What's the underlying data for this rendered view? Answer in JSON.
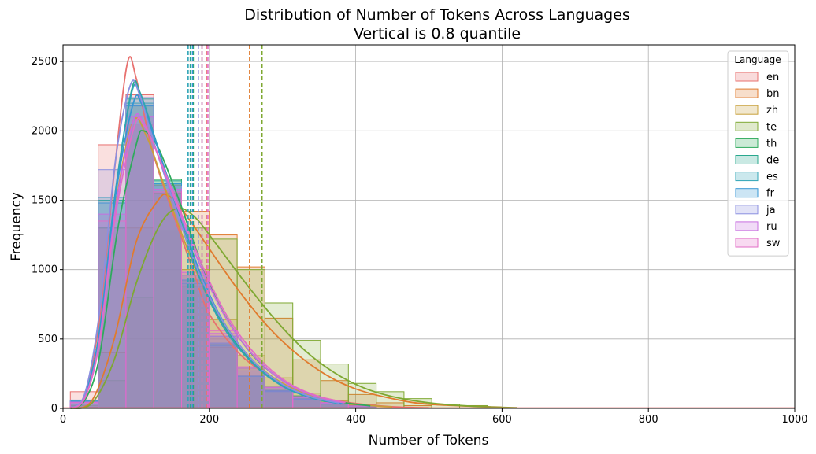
{
  "chart_data": {
    "type": "histogram",
    "title": "Distribution of Number of Tokens Across Languages",
    "subtitle": "Vertical is 0.8 quantile",
    "xlabel": "Number of Tokens",
    "ylabel": "Frequency",
    "xlim": [
      0,
      1000
    ],
    "ylim": [
      0,
      2620
    ],
    "xticks": [
      0,
      200,
      400,
      600,
      800,
      1000
    ],
    "yticks": [
      0,
      500,
      1000,
      1500,
      2000,
      2500
    ],
    "grid": true,
    "legend_title": "Language",
    "legend_position": "top-right",
    "series": [
      {
        "name": "en",
        "color": "#e8716f",
        "quantile_0_8": 196,
        "bins": [
          [
            10,
            120
          ],
          [
            48,
            1900
          ],
          [
            86,
            2260
          ],
          [
            124,
            1610
          ],
          [
            162,
            880
          ],
          [
            200,
            440
          ],
          [
            238,
            240
          ],
          [
            276,
            130
          ],
          [
            314,
            70
          ],
          [
            352,
            40
          ],
          [
            390,
            20
          ]
        ],
        "kde": [
          [
            10,
            0
          ],
          [
            30,
            100
          ],
          [
            50,
            650
          ],
          [
            70,
            1700
          ],
          [
            88,
            2490
          ],
          [
            100,
            2380
          ],
          [
            120,
            1900
          ],
          [
            140,
            1560
          ],
          [
            160,
            1260
          ],
          [
            180,
            960
          ],
          [
            200,
            680
          ],
          [
            240,
            400
          ],
          [
            280,
            240
          ],
          [
            320,
            130
          ],
          [
            360,
            70
          ],
          [
            400,
            35
          ],
          [
            450,
            12
          ],
          [
            500,
            4
          ]
        ]
      },
      {
        "name": "bn",
        "color": "#e07b2e",
        "quantile_0_8": 255,
        "bins": [
          [
            10,
            10
          ],
          [
            48,
            400
          ],
          [
            86,
            1300
          ],
          [
            124,
            1550
          ],
          [
            162,
            1420
          ],
          [
            200,
            1250
          ],
          [
            238,
            1020
          ],
          [
            276,
            650
          ],
          [
            314,
            350
          ],
          [
            352,
            200
          ],
          [
            390,
            100
          ],
          [
            428,
            40
          ],
          [
            466,
            20
          ]
        ],
        "kde": [
          [
            10,
            0
          ],
          [
            40,
            60
          ],
          [
            70,
            500
          ],
          [
            100,
            1200
          ],
          [
            130,
            1500
          ],
          [
            145,
            1530
          ],
          [
            170,
            1380
          ],
          [
            200,
            1150
          ],
          [
            240,
            850
          ],
          [
            280,
            590
          ],
          [
            320,
            390
          ],
          [
            360,
            240
          ],
          [
            400,
            140
          ],
          [
            450,
            70
          ],
          [
            500,
            30
          ],
          [
            600,
            8
          ]
        ]
      },
      {
        "name": "zh",
        "color": "#c8a03a",
        "quantile_0_8": 190,
        "bins": [
          [
            10,
            20
          ],
          [
            48,
            1300
          ],
          [
            86,
            2180
          ],
          [
            124,
            1560
          ],
          [
            162,
            1000
          ],
          [
            200,
            640
          ],
          [
            238,
            380
          ],
          [
            276,
            220
          ],
          [
            314,
            110
          ],
          [
            352,
            55
          ],
          [
            390,
            25
          ]
        ],
        "kde": [
          [
            10,
            0
          ],
          [
            30,
            80
          ],
          [
            50,
            500
          ],
          [
            70,
            1400
          ],
          [
            95,
            2060
          ],
          [
            115,
            1950
          ],
          [
            140,
            1580
          ],
          [
            170,
            1150
          ],
          [
            200,
            780
          ],
          [
            240,
            450
          ],
          [
            280,
            250
          ],
          [
            320,
            130
          ],
          [
            360,
            65
          ],
          [
            400,
            30
          ],
          [
            450,
            10
          ]
        ]
      },
      {
        "name": "te",
        "color": "#7ea832",
        "quantile_0_8": 272,
        "bins": [
          [
            10,
            5
          ],
          [
            48,
            200
          ],
          [
            86,
            800
          ],
          [
            124,
            1280
          ],
          [
            162,
            1300
          ],
          [
            200,
            1220
          ],
          [
            238,
            1000
          ],
          [
            276,
            760
          ],
          [
            314,
            490
          ],
          [
            352,
            320
          ],
          [
            390,
            180
          ],
          [
            428,
            120
          ],
          [
            466,
            70
          ],
          [
            504,
            30
          ],
          [
            542,
            20
          ]
        ],
        "kde": [
          [
            10,
            0
          ],
          [
            40,
            40
          ],
          [
            70,
            350
          ],
          [
            100,
            900
          ],
          [
            130,
            1300
          ],
          [
            155,
            1440
          ],
          [
            180,
            1380
          ],
          [
            210,
            1180
          ],
          [
            250,
            900
          ],
          [
            290,
            640
          ],
          [
            330,
            420
          ],
          [
            370,
            260
          ],
          [
            410,
            150
          ],
          [
            450,
            85
          ],
          [
            500,
            40
          ],
          [
            560,
            15
          ],
          [
            620,
            5
          ]
        ]
      },
      {
        "name": "th",
        "color": "#2eaa5c",
        "quantile_0_8": 178,
        "bins": [
          [
            10,
            30
          ],
          [
            48,
            1300
          ],
          [
            86,
            2050
          ],
          [
            124,
            1650
          ],
          [
            162,
            960
          ],
          [
            200,
            520
          ],
          [
            238,
            290
          ],
          [
            276,
            160
          ],
          [
            314,
            90
          ],
          [
            352,
            45
          ],
          [
            390,
            20
          ]
        ],
        "kde": [
          [
            10,
            0
          ],
          [
            30,
            60
          ],
          [
            50,
            380
          ],
          [
            75,
            1300
          ],
          [
            100,
            1900
          ],
          [
            110,
            2000
          ],
          [
            130,
            1880
          ],
          [
            160,
            1480
          ],
          [
            190,
            1030
          ],
          [
            220,
            680
          ],
          [
            260,
            380
          ],
          [
            300,
            200
          ],
          [
            340,
            100
          ],
          [
            380,
            45
          ],
          [
            420,
            18
          ]
        ]
      },
      {
        "name": "de",
        "color": "#29a88e",
        "quantile_0_8": 174,
        "bins": [
          [
            10,
            50
          ],
          [
            48,
            1500
          ],
          [
            86,
            2230
          ],
          [
            124,
            1640
          ],
          [
            162,
            920
          ],
          [
            200,
            460
          ],
          [
            238,
            240
          ],
          [
            276,
            130
          ],
          [
            314,
            70
          ],
          [
            352,
            35
          ],
          [
            390,
            15
          ]
        ],
        "kde": [
          [
            10,
            0
          ],
          [
            30,
            90
          ],
          [
            50,
            550
          ],
          [
            72,
            1550
          ],
          [
            94,
            2300
          ],
          [
            105,
            2280
          ],
          [
            125,
            1960
          ],
          [
            155,
            1450
          ],
          [
            185,
            980
          ],
          [
            220,
            600
          ],
          [
            260,
            330
          ],
          [
            300,
            170
          ],
          [
            340,
            80
          ],
          [
            380,
            35
          ]
        ]
      },
      {
        "name": "es",
        "color": "#2fa4b6",
        "quantile_0_8": 171,
        "bins": [
          [
            10,
            55
          ],
          [
            48,
            1520
          ],
          [
            86,
            2200
          ],
          [
            124,
            1620
          ],
          [
            162,
            900
          ],
          [
            200,
            450
          ],
          [
            238,
            230
          ],
          [
            276,
            120
          ],
          [
            314,
            65
          ],
          [
            352,
            30
          ],
          [
            390,
            12
          ]
        ],
        "kde": [
          [
            10,
            0
          ],
          [
            30,
            95
          ],
          [
            50,
            560
          ],
          [
            72,
            1580
          ],
          [
            94,
            2280
          ],
          [
            106,
            2260
          ],
          [
            126,
            1940
          ],
          [
            156,
            1420
          ],
          [
            186,
            950
          ],
          [
            220,
            580
          ],
          [
            260,
            320
          ],
          [
            300,
            160
          ],
          [
            340,
            75
          ],
          [
            380,
            32
          ]
        ]
      },
      {
        "name": "fr",
        "color": "#3596d4",
        "quantile_0_8": 177,
        "bins": [
          [
            10,
            50
          ],
          [
            48,
            1480
          ],
          [
            86,
            2180
          ],
          [
            124,
            1620
          ],
          [
            162,
            930
          ],
          [
            200,
            470
          ],
          [
            238,
            240
          ],
          [
            276,
            125
          ],
          [
            314,
            65
          ],
          [
            352,
            32
          ],
          [
            390,
            14
          ]
        ],
        "kde": [
          [
            10,
            0
          ],
          [
            30,
            90
          ],
          [
            50,
            540
          ],
          [
            72,
            1540
          ],
          [
            96,
            2200
          ],
          [
            108,
            2190
          ],
          [
            128,
            1900
          ],
          [
            158,
            1430
          ],
          [
            188,
            970
          ],
          [
            222,
            600
          ],
          [
            262,
            330
          ],
          [
            302,
            165
          ],
          [
            342,
            78
          ],
          [
            382,
            34
          ]
        ]
      },
      {
        "name": "ja",
        "color": "#8b8fe0",
        "quantile_0_8": 185,
        "bins": [
          [
            10,
            60
          ],
          [
            48,
            1720
          ],
          [
            86,
            2240
          ],
          [
            124,
            1600
          ],
          [
            162,
            960
          ],
          [
            200,
            520
          ],
          [
            238,
            270
          ],
          [
            276,
            140
          ],
          [
            314,
            75
          ],
          [
            352,
            35
          ],
          [
            390,
            15
          ]
        ],
        "kde": [
          [
            10,
            0
          ],
          [
            30,
            110
          ],
          [
            50,
            700
          ],
          [
            72,
            1800
          ],
          [
            92,
            2330
          ],
          [
            104,
            2270
          ],
          [
            124,
            1920
          ],
          [
            154,
            1440
          ],
          [
            184,
            1000
          ],
          [
            218,
            630
          ],
          [
            258,
            350
          ],
          [
            298,
            180
          ],
          [
            338,
            85
          ],
          [
            378,
            38
          ]
        ]
      },
      {
        "name": "ru",
        "color": "#c76ee0",
        "quantile_0_8": 190,
        "bins": [
          [
            10,
            45
          ],
          [
            48,
            1400
          ],
          [
            86,
            2100
          ],
          [
            124,
            1580
          ],
          [
            162,
            980
          ],
          [
            200,
            540
          ],
          [
            238,
            290
          ],
          [
            276,
            150
          ],
          [
            314,
            80
          ],
          [
            352,
            40
          ],
          [
            390,
            18
          ]
        ],
        "kde": [
          [
            10,
            0
          ],
          [
            30,
            80
          ],
          [
            50,
            500
          ],
          [
            72,
            1450
          ],
          [
            96,
            2070
          ],
          [
            110,
            2060
          ],
          [
            130,
            1820
          ],
          [
            160,
            1400
          ],
          [
            190,
            1000
          ],
          [
            224,
            640
          ],
          [
            264,
            360
          ],
          [
            304,
            185
          ],
          [
            344,
            90
          ],
          [
            384,
            40
          ]
        ]
      },
      {
        "name": "sw",
        "color": "#e26cc6",
        "quantile_0_8": 198,
        "bins": [
          [
            10,
            40
          ],
          [
            48,
            1350
          ],
          [
            86,
            2050
          ],
          [
            124,
            1560
          ],
          [
            162,
            990
          ],
          [
            200,
            560
          ],
          [
            238,
            300
          ],
          [
            276,
            160
          ],
          [
            314,
            85
          ],
          [
            352,
            42
          ],
          [
            390,
            18
          ]
        ],
        "kde": [
          [
            10,
            0
          ],
          [
            30,
            75
          ],
          [
            50,
            480
          ],
          [
            72,
            1400
          ],
          [
            98,
            2040
          ],
          [
            112,
            2030
          ],
          [
            132,
            1800
          ],
          [
            162,
            1400
          ],
          [
            192,
            1010
          ],
          [
            226,
            650
          ],
          [
            266,
            370
          ],
          [
            306,
            190
          ],
          [
            346,
            92
          ],
          [
            386,
            42
          ]
        ]
      }
    ]
  }
}
